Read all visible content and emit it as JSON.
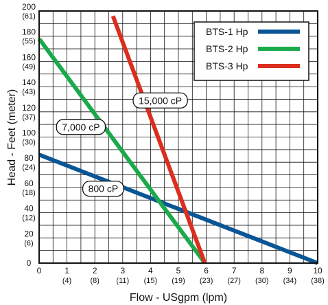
{
  "chart_data": {
    "type": "line",
    "title": "",
    "xlabel": "Flow - USgpm (lpm)",
    "ylabel": "Head - Feet (meter)",
    "xlim": [
      0,
      10
    ],
    "ylim": [
      0,
      200
    ],
    "grid": true,
    "legend_position": "top-right",
    "x_ticks": [
      {
        "value": 0,
        "label": "0",
        "sub": ""
      },
      {
        "value": 1,
        "label": "1",
        "sub": "(4)"
      },
      {
        "value": 2,
        "label": "2",
        "sub": "(8)"
      },
      {
        "value": 3,
        "label": "3",
        "sub": "(11)"
      },
      {
        "value": 4,
        "label": "4",
        "sub": "(15)"
      },
      {
        "value": 5,
        "label": "5",
        "sub": "(19)"
      },
      {
        "value": 6,
        "label": "6",
        "sub": "(23)"
      },
      {
        "value": 7,
        "label": "7",
        "sub": "(27)"
      },
      {
        "value": 8,
        "label": "8",
        "sub": "(30)"
      },
      {
        "value": 9,
        "label": "9",
        "sub": "(34)"
      },
      {
        "value": 10,
        "label": "10",
        "sub": "(38)"
      }
    ],
    "y_ticks": [
      {
        "value": 0,
        "label": "0",
        "sub": ""
      },
      {
        "value": 20,
        "label": "20",
        "sub": "(6)"
      },
      {
        "value": 40,
        "label": "40",
        "sub": "(12)"
      },
      {
        "value": 60,
        "label": "60",
        "sub": "(18)"
      },
      {
        "value": 80,
        "label": "80",
        "sub": "(24)"
      },
      {
        "value": 100,
        "label": "100",
        "sub": "(30)"
      },
      {
        "value": 120,
        "label": "120",
        "sub": "(37)"
      },
      {
        "value": 140,
        "label": "140",
        "sub": "(43)"
      },
      {
        "value": 160,
        "label": "160",
        "sub": "(49)"
      },
      {
        "value": 180,
        "label": "180",
        "sub": "(55)"
      },
      {
        "value": 200,
        "label": "200",
        "sub": "(61)"
      }
    ],
    "series": [
      {
        "name": "BTS-1 Hp",
        "color": "#0a5595",
        "points": [
          [
            0,
            86
          ],
          [
            10,
            0
          ]
        ]
      },
      {
        "name": "BTS-2 Hp",
        "color": "#1aaa4b",
        "points": [
          [
            0,
            178
          ],
          [
            5.95,
            0
          ]
        ]
      },
      {
        "name": "BTS-3 Hp",
        "color": "#dc2e1e",
        "points": [
          [
            2.65,
            196
          ],
          [
            5.95,
            0
          ]
        ]
      }
    ],
    "annotations": [
      {
        "text": "800 cP",
        "x": 2.3,
        "y": 59
      },
      {
        "text": "7,000 cP",
        "x": 1.5,
        "y": 108
      },
      {
        "text": "15,000 cP",
        "x": 4.35,
        "y": 129
      }
    ]
  }
}
